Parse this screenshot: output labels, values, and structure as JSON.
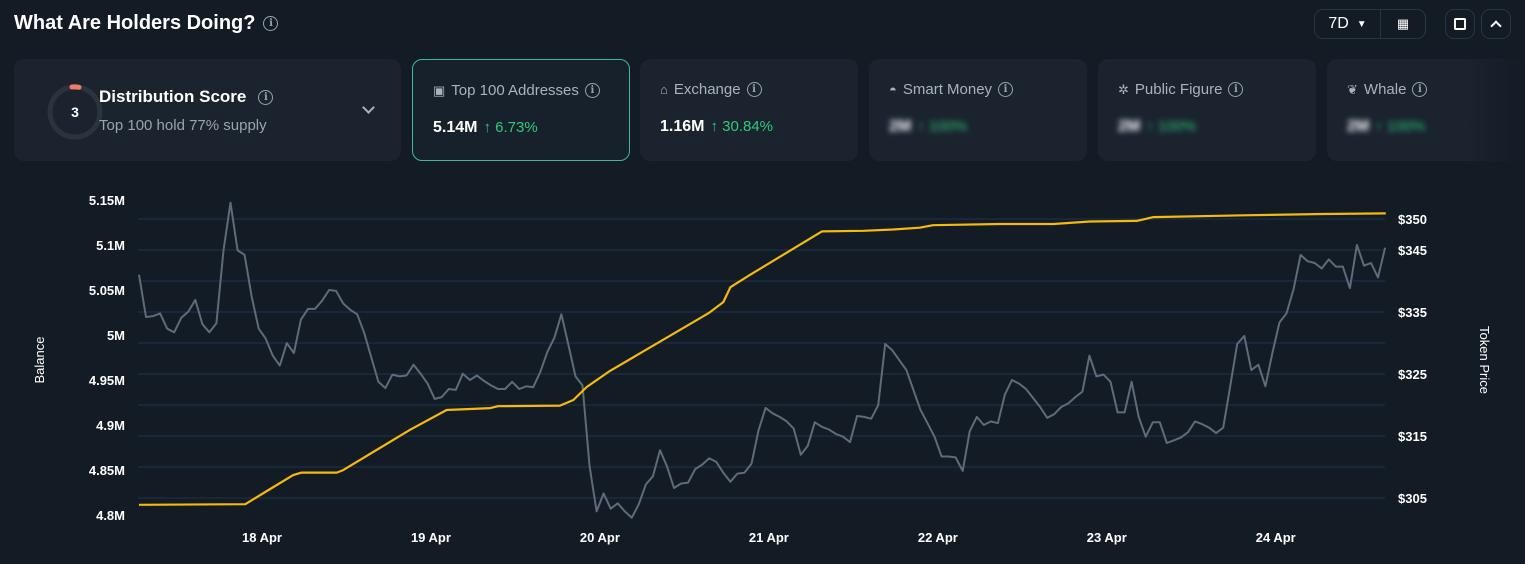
{
  "header": {
    "title": "What Are Holders Doing?",
    "period": "7D"
  },
  "score_card": {
    "score": "3",
    "title": "Distribution Score",
    "subtitle": "Top 100 hold 77% supply"
  },
  "cards": [
    {
      "label": "Top 100 Addresses",
      "value": "5.14M",
      "change": "↑ 6.73%",
      "icon": "wallet-icon",
      "blurred": false
    },
    {
      "label": "Exchange",
      "value": "1.16M",
      "change": "↑ 30.84%",
      "icon": "bank-icon",
      "blurred": false
    },
    {
      "label": "Smart Money",
      "value": "2M",
      "change": "↑ 100%",
      "icon": "sunglasses-icon",
      "blurred": true
    },
    {
      "label": "Public Figure",
      "value": "2M",
      "change": "↑ 100%",
      "icon": "podium-icon",
      "blurred": true
    },
    {
      "label": "Whale",
      "value": "2M",
      "change": "↑ 100%",
      "icon": "whale-icon",
      "blurred": true
    }
  ],
  "colors": {
    "balance": "#5f6b78",
    "price": "#f5b90f",
    "grid": "#1c3550",
    "accent": "#2fc97a"
  },
  "chart_data": {
    "type": "line",
    "ylabel": "Balance",
    "y2label": "Token Price",
    "ylim": [
      4.8,
      5.15
    ],
    "y2lim": [
      303,
      351
    ],
    "yticks": [
      "5.15M",
      "5.1M",
      "5.05M",
      "5M",
      "4.95M",
      "4.9M",
      "4.85M",
      "4.8M"
    ],
    "ytick_values": [
      5.15,
      5.1,
      5.05,
      5.0,
      4.95,
      4.9,
      4.85,
      4.8
    ],
    "y2ticks": [
      "$350",
      "$345",
      "$335",
      "$325",
      "$315",
      "$305"
    ],
    "y2tick_values": [
      350,
      345,
      335,
      325,
      315,
      305
    ],
    "grid_values": [
      350,
      345,
      340,
      335,
      330,
      325,
      320,
      315,
      310,
      305
    ],
    "xticks": [
      "18 Apr",
      "19 Apr",
      "20 Apr",
      "21 Apr",
      "22 Apr",
      "23 Apr",
      "24 Apr"
    ],
    "xtick_hours": [
      24,
      48,
      72,
      96,
      120,
      144,
      168
    ],
    "x_unit": "hours since 17 Apr 00:00",
    "series": [
      {
        "name": "Balance (M)",
        "start_hour": 6.5,
        "step_hours": 1,
        "values": [
          5.067,
          5.02,
          5.021,
          5.024,
          5.007,
          5.003,
          5.019,
          5.026,
          5.039,
          5.012,
          5.003,
          5.013,
          5.094,
          5.147,
          5.094,
          5.089,
          5.043,
          5.007,
          4.996,
          4.977,
          4.966,
          4.991,
          4.98,
          5.017,
          5.029,
          5.029,
          5.038,
          5.05,
          5.049,
          5.035,
          5.028,
          5.023,
          5.002,
          4.975,
          4.948,
          4.941,
          4.956,
          4.954,
          4.955,
          4.967,
          4.957,
          4.946,
          4.929,
          4.931,
          4.94,
          4.939,
          4.957,
          4.95,
          4.955,
          4.949,
          4.944,
          4.94,
          4.94,
          4.948,
          4.94,
          4.943,
          4.942,
          4.959,
          4.981,
          4.997,
          5.023,
          4.989,
          4.954,
          4.944,
          4.854,
          4.804,
          4.824,
          4.807,
          4.813,
          4.804,
          4.797,
          4.812,
          4.834,
          4.843,
          4.872,
          4.854,
          4.83,
          4.835,
          4.836,
          4.851,
          4.856,
          4.863,
          4.859,
          4.847,
          4.837,
          4.846,
          4.847,
          4.857,
          4.894,
          4.919,
          4.913,
          4.909,
          4.904,
          4.896,
          4.867,
          4.877,
          4.903,
          4.898,
          4.895,
          4.89,
          4.887,
          4.881,
          4.91,
          4.909,
          4.907,
          4.922,
          4.99,
          4.983,
          4.972,
          4.961,
          4.939,
          4.917,
          4.902,
          4.887,
          4.865,
          4.865,
          4.864,
          4.849,
          4.893,
          4.909,
          4.9,
          4.904,
          4.902,
          4.934,
          4.95,
          4.946,
          4.94,
          4.93,
          4.92,
          4.908,
          4.912,
          4.92,
          4.924,
          4.931,
          4.937,
          4.977,
          4.954,
          4.956,
          4.948,
          4.914,
          4.914,
          4.948,
          4.909,
          4.887,
          4.903,
          4.903,
          4.88,
          4.883,
          4.886,
          4.892,
          4.904,
          4.901,
          4.897,
          4.891,
          4.897,
          4.943,
          4.99,
          4.999,
          4.961,
          4.967,
          4.943,
          4.98,
          5.014,
          5.024,
          5.051,
          5.089,
          5.082,
          5.08,
          5.074,
          5.084,
          5.076,
          5.076,
          5.052,
          5.1,
          5.077,
          5.08,
          5.064,
          5.097
        ]
      },
      {
        "name": "Token Price ($)",
        "points": [
          [
            6.5,
            303.9
          ],
          [
            21.6,
            304.0
          ],
          [
            24.2,
            305.8
          ],
          [
            28.4,
            308.7
          ],
          [
            29.6,
            309.1
          ],
          [
            34.6,
            309.1
          ],
          [
            35.5,
            309.5
          ],
          [
            45.0,
            316.0
          ],
          [
            50.2,
            319.2
          ],
          [
            56.4,
            319.5
          ],
          [
            57.5,
            319.8
          ],
          [
            66.3,
            319.9
          ],
          [
            68.2,
            320.8
          ],
          [
            70.1,
            322.9
          ],
          [
            73.4,
            325.5
          ],
          [
            87.4,
            334.8
          ],
          [
            89.5,
            336.6
          ],
          [
            90.5,
            339.0
          ],
          [
            93.3,
            341.0
          ],
          [
            103.5,
            348.0
          ],
          [
            109.4,
            348.1
          ],
          [
            113.6,
            348.3
          ],
          [
            117.4,
            348.6
          ],
          [
            119.3,
            349.0
          ],
          [
            128.8,
            349.2
          ],
          [
            136.4,
            349.2
          ],
          [
            141.6,
            349.6
          ],
          [
            148.2,
            349.7
          ],
          [
            150.6,
            350.3
          ],
          [
            163.4,
            350.6
          ],
          [
            174.7,
            350.8
          ],
          [
            183.6,
            350.9
          ]
        ]
      }
    ]
  }
}
